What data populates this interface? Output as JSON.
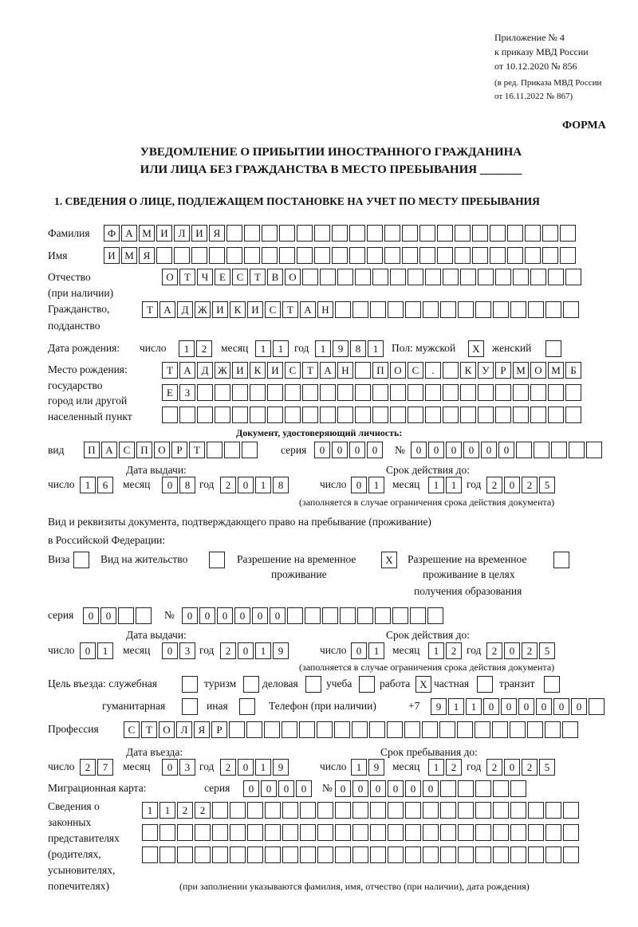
{
  "header": {
    "line1": "Приложение № 4",
    "line2": "к приказу МВД России",
    "line3": "от 10.12.2020 № 856",
    "line4": "(в ред. Приказа МВД России",
    "line5": "от 16.11.2022 № 867)",
    "forma": "ФОРМА"
  },
  "title": {
    "line1": "УВЕДОМЛЕНИЕ О ПРИБЫТИИ ИНОСТРАННОГО ГРАЖДАНИНА",
    "line2": "ИЛИ ЛИЦА БЕЗ ГРАЖДАНСТВА В МЕСТО ПРЕБЫВАНИЯ _______"
  },
  "section1": "1. СВЕДЕНИЯ О ЛИЦЕ, ПОДЛЕЖАЩЕМ ПОСТАНОВКЕ НА УЧЕТ ПО МЕСТУ ПРЕБЫВАНИЯ",
  "labels": {
    "surname": "Фамилия",
    "name": "Имя",
    "patronymic1": "Отчество",
    "patronymic2": "(при наличии)",
    "citizenship1": "Гражданство,",
    "citizenship2": "подданство",
    "birth_date": "Дата рождения:",
    "day": "число",
    "month": "месяц",
    "year": "год",
    "sex": "Пол: мужской",
    "female": "женский",
    "birthplace1": "Место рождения:",
    "birthplace2": "государство",
    "birthplace3": "город или другой",
    "birthplace4": "населенный пункт",
    "id_doc": "Документ, удостоверяющий личность:",
    "kind": "вид",
    "series": "серия",
    "number": "№",
    "issue_date": "Дата выдачи:",
    "valid_until": "Срок действия до:",
    "valid_note": "(заполняется в случае ограничения срока действия документа)",
    "stay_doc1": "Вид и реквизиты документа, подтверждающего право на пребывание (проживание)",
    "stay_doc2": "в Российской Федерации:",
    "visa": "Виза",
    "residence": "Вид на жительство",
    "trp1": "Разрешение на временное",
    "trp2": "проживание",
    "trpe1": "Разрешение на временное",
    "trpe2": "проживание в целях",
    "trpe3": "получения образования",
    "purpose": "Цель въезда: служебная",
    "tourism": "туризм",
    "business": "деловая",
    "study": "учеба",
    "work": "работа",
    "private": "частная",
    "transit": "транзит",
    "humanitarian": "гуманитарная",
    "other": "иная",
    "phone": "Телефон (при наличии)",
    "phone_prefix": "+7",
    "profession": "Профессия",
    "entry_date": "Дата въезда:",
    "stay_until": "Срок пребывания до:",
    "migration_card": "Миграционная карта:",
    "reps1": "Сведения о",
    "reps2": "законных",
    "reps3": "представителях",
    "reps4": "(родителях,",
    "reps5": "усыновителях,",
    "reps6": "попечителях)",
    "reps_note": "(при заполнении указываются фамилия, имя, отчество (при наличии), дата рождения)"
  },
  "fields": {
    "surname": "ФАМИЛИЯ",
    "name": "ИМЯ",
    "patronymic": "ОТЧЕСТВО",
    "citizenship": "ТАДЖИКИСТАН",
    "birth_day": "12",
    "birth_month": "11",
    "birth_year": "1981",
    "sex_male": "X",
    "sex_female": "",
    "birthplace_1": "ТАДЖИКИСТАН ПОС. КУРМОМБ",
    "birthplace_2": "ЕЗ",
    "birthplace_3": "",
    "id_kind": "ПАСПОРТ",
    "id_series": "0000",
    "id_number": "000000",
    "id_issue_day": "16",
    "id_issue_month": "08",
    "id_issue_year": "2018",
    "id_valid_day": "01",
    "id_valid_month": "11",
    "id_valid_year": "2025",
    "visa": "",
    "residence": "",
    "trp": "X",
    "trpe": "",
    "stay_series": "00",
    "stay_number": "000000",
    "stay_issue_day": "01",
    "stay_issue_month": "03",
    "stay_issue_year": "2019",
    "stay_valid_day": "01",
    "stay_valid_month": "12",
    "stay_valid_year": "2025",
    "p_official": "",
    "p_tourism": "",
    "p_business": "",
    "p_study": "",
    "p_work": "X",
    "p_private": "",
    "p_transit": "",
    "p_humanitarian": "",
    "p_other": "",
    "phone": "911000000",
    "profession": "СТОЛЯР",
    "entry_day": "27",
    "entry_month": "03",
    "entry_year": "2019",
    "stay_day": "19",
    "stay_month": "12",
    "stay_year": "2025",
    "mc_series": "0000",
    "mc_number": "000000",
    "reps_1": "1122",
    "reps_2": "",
    "reps_3": ""
  }
}
